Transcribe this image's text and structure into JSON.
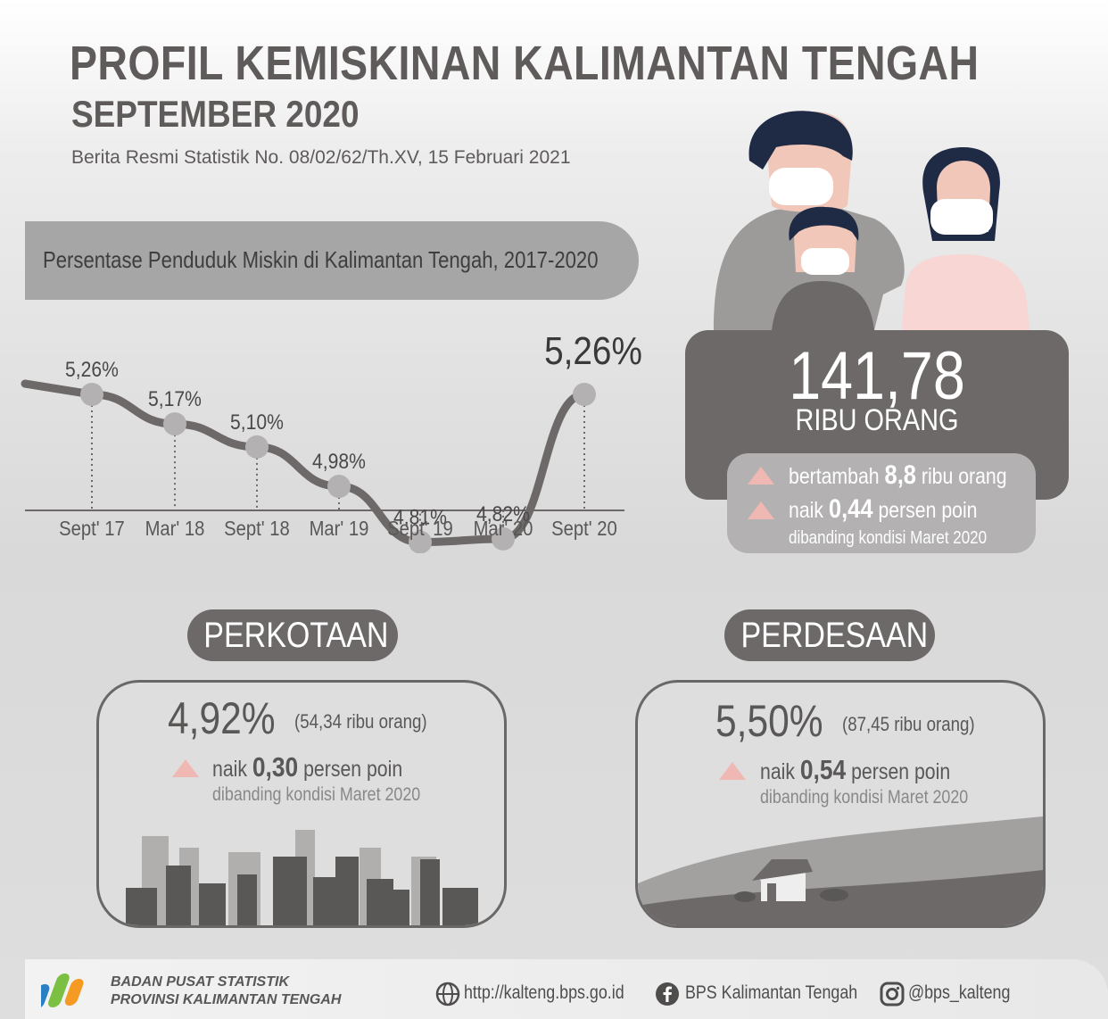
{
  "header": {
    "title": "PROFIL KEMISKINAN KALIMANTAN TENGAH",
    "subtitle": "SEPTEMBER 2020",
    "source": "Berita Resmi Statistik No. 08/02/62/Th.XV, 15 Februari 2021"
  },
  "chart_data": {
    "type": "line",
    "title": "Persentase Penduduk Miskin di Kalimantan Tengah, 2017-2020",
    "categories": [
      "Sept' 17",
      "Mar' 18",
      "Sept' 18",
      "Mar' 19",
      "Sept' 19",
      "Mar' 20",
      "Sept' 20"
    ],
    "values": [
      5.26,
      5.17,
      5.1,
      4.98,
      4.81,
      4.82,
      5.26
    ],
    "labels": [
      "5,26%",
      "5,17%",
      "5,10%",
      "4,98%",
      "4,81%",
      "4,82%",
      "5,26%"
    ],
    "grid": false,
    "legend": "none",
    "colors": {
      "line": "#6d6969",
      "marker": "#b3b1b1",
      "dashes": "#6d6969"
    }
  },
  "total": {
    "value": "141,78",
    "unit": "RIBU ORANG",
    "change_count_prefix": "bertambah",
    "change_count_value": "8,8",
    "change_count_suffix": "ribu orang",
    "change_point_prefix": "naik",
    "change_point_value": "0,44",
    "change_point_suffix": "persen poin",
    "comparison": "dibanding kondisi Maret 2020"
  },
  "urban": {
    "label": "PERKOTAAN",
    "percent": "4,92%",
    "count": "(54,34 ribu orang)",
    "change_prefix": "naik",
    "change_value": "0,30",
    "change_suffix": "persen poin",
    "comparison": "dibanding kondisi Maret 2020"
  },
  "rural": {
    "label": "PERDESAAN",
    "percent": "5,50%",
    "count": "(87,45 ribu orang)",
    "change_prefix": "naik",
    "change_value": "0,54",
    "change_suffix": "persen poin",
    "comparison": "dibanding kondisi Maret 2020"
  },
  "footer": {
    "org_line1": "BADAN PUSAT STATISTIK",
    "org_line2": "PROVINSI KALIMANTAN TENGAH",
    "website": "http://kalteng.bps.go.id",
    "facebook": "BPS Kalimantan Tengah",
    "instagram": "@bps_kalteng"
  },
  "colors": {
    "dark_gray": "#6d6969",
    "increase_triangle": "#f0b8b3",
    "text_gray": "#5e5b5a"
  }
}
